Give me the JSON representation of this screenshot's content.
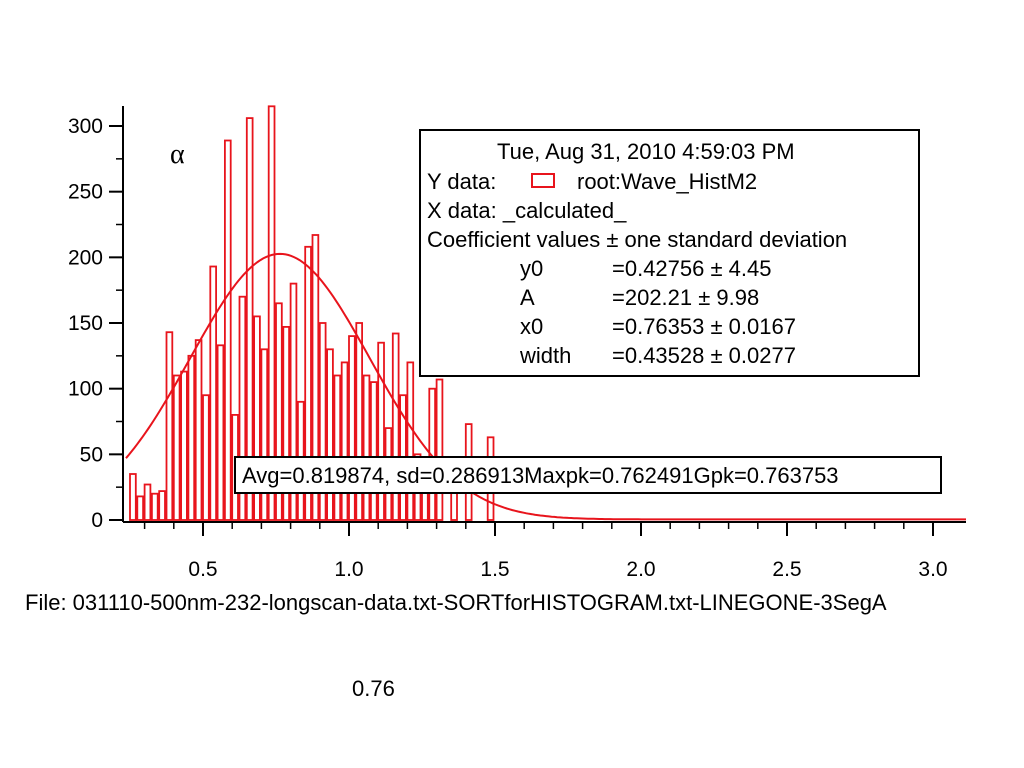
{
  "chart_data": {
    "type": "bar",
    "greek_label": "α",
    "color": "#e8141c",
    "xlim": [
      0.25,
      3.12
    ],
    "ylim": [
      0,
      315
    ],
    "x_ticks": [
      "0.5",
      "1.0",
      "1.5",
      "2.0",
      "2.5",
      "3.0"
    ],
    "y_ticks": [
      "0",
      "50",
      "100",
      "150",
      "200",
      "250",
      "300"
    ],
    "bins": {
      "x": [
        0.26,
        0.285,
        0.31,
        0.335,
        0.36,
        0.385,
        0.41,
        0.435,
        0.46,
        0.485,
        0.51,
        0.535,
        0.56,
        0.585,
        0.61,
        0.635,
        0.66,
        0.685,
        0.71,
        0.735,
        0.76,
        0.785,
        0.81,
        0.835,
        0.86,
        0.885,
        0.91,
        0.935,
        0.96,
        0.985,
        1.01,
        1.035,
        1.06,
        1.085,
        1.11,
        1.135,
        1.16,
        1.185,
        1.21,
        1.235,
        1.26,
        1.285,
        1.31,
        1.335,
        1.36,
        1.385,
        1.41,
        1.435,
        1.46,
        1.485
      ],
      "y": [
        35,
        18,
        27,
        20,
        22,
        143,
        110,
        113,
        125,
        137,
        95,
        193,
        133,
        289,
        80,
        170,
        306,
        155,
        130,
        315,
        165,
        147,
        180,
        90,
        208,
        217,
        150,
        130,
        110,
        120,
        140,
        150,
        110,
        105,
        135,
        70,
        142,
        95,
        120,
        50,
        25,
        100,
        107,
        0,
        45,
        0,
        73,
        0,
        0,
        63
      ]
    },
    "fit": {
      "y0": 0.42756,
      "A": 202.21,
      "x0": 0.76353,
      "width": 0.43528
    },
    "info_box": {
      "timestamp": "Tue, Aug 31, 2010 4:59:03 PM",
      "y_data_label": "Y data:",
      "y_data_value": "root:Wave_HistM2",
      "x_data": "X data: _calculated_",
      "coef_header": "Coefficient values ± one standard deviation",
      "coefficients": [
        {
          "name": "y0",
          "value": "=0.42756 ± 4.45"
        },
        {
          "name": "A",
          "value": "=202.21 ± 9.98"
        },
        {
          "name": "x0",
          "value": "=0.76353 ± 0.0167"
        },
        {
          "name": "width",
          "value": "=0.43528 ± 0.0277"
        }
      ]
    },
    "stats_box": "Avg=0.819874, sd=0.286913Maxpk=0.762491Gpk=0.763753"
  },
  "footer": {
    "file": "File: 031110-500nm-232-longscan-data.txt-SORTforHISTOGRAM.txt-LINEGONE-3SegA",
    "cursor_value": "0.76"
  }
}
